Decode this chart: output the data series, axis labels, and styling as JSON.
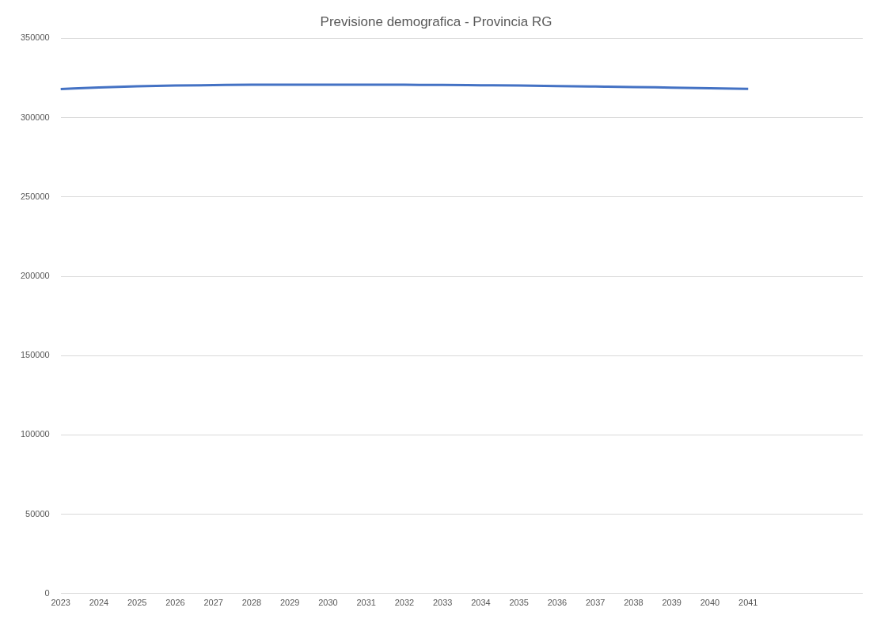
{
  "chart_data": {
    "type": "line",
    "title": "Previsione demografica - Provincia RG",
    "categories": [
      "2023",
      "2024",
      "2025",
      "2026",
      "2027",
      "2028",
      "2029",
      "2030",
      "2031",
      "2032",
      "2033",
      "2034",
      "2035",
      "2036",
      "2037",
      "2038",
      "2039",
      "2040",
      "2041",
      null,
      null,
      null
    ],
    "series": [
      {
        "color": "#4472c4",
        "values": [
          318000,
          319000,
          319700,
          320200,
          320500,
          320700,
          320800,
          320800,
          320800,
          320700,
          320600,
          320400,
          320200,
          319900,
          319600,
          319300,
          318900,
          318500,
          318200,
          null,
          null,
          null
        ]
      }
    ],
    "ylim": [
      0,
      350000
    ],
    "yticks": [
      0,
      50000,
      100000,
      150000,
      200000,
      250000,
      300000,
      350000
    ],
    "grid": "y",
    "legend": false,
    "marker": "none",
    "line_style": "solid"
  }
}
